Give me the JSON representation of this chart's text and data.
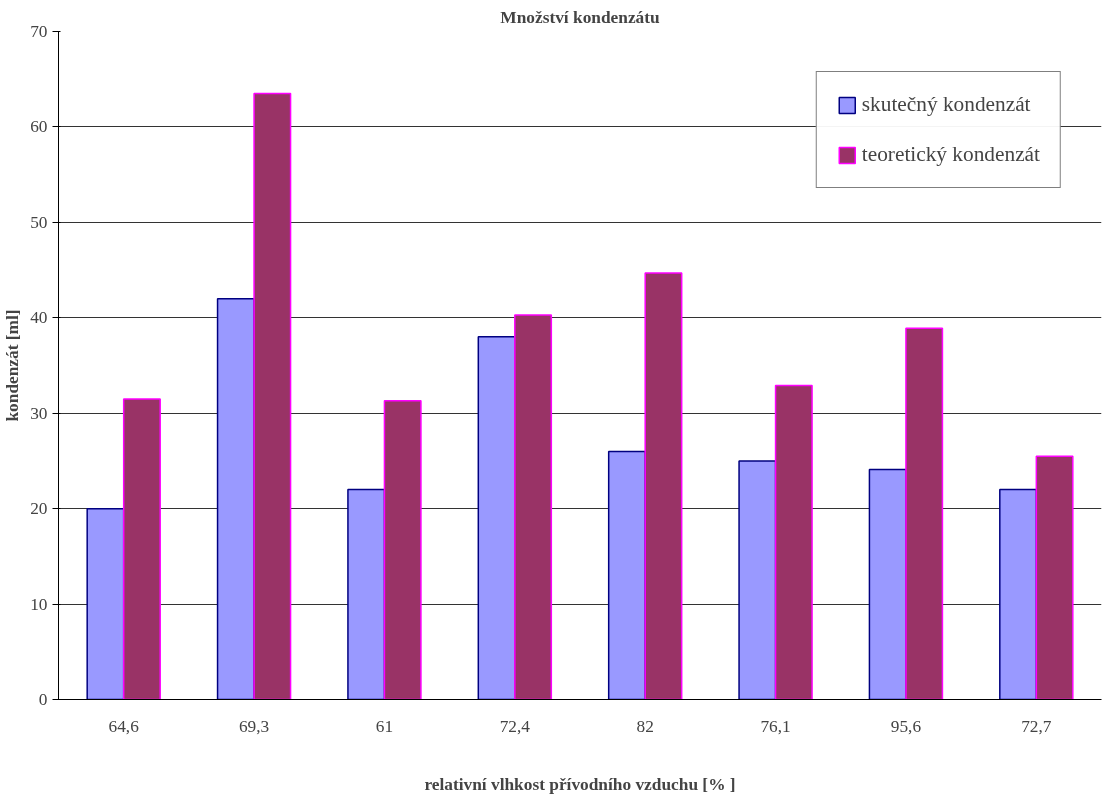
{
  "chart_data": {
    "type": "bar",
    "title": "Množství kondenzátu",
    "xlabel": "relativní vlhkost přívodního vzduchu [% ]",
    "ylabel": "kondenzát [ml]",
    "categories": [
      "64,6",
      "69,3",
      "61",
      "72,4",
      "82",
      "76,1",
      "95,6",
      "72,7"
    ],
    "series": [
      {
        "name": "skutečný kondenzát",
        "color": "#9999ff",
        "values": [
          20,
          42,
          22,
          38,
          26,
          25,
          24.1,
          22
        ]
      },
      {
        "name": "teoretický kondenzát",
        "color": "#993366",
        "values": [
          31.5,
          63.5,
          31.3,
          40.3,
          44.7,
          32.9,
          38.9,
          25.5
        ]
      }
    ],
    "ylim": [
      0,
      70
    ],
    "yticks": [
      0,
      10,
      20,
      30,
      40,
      50,
      60,
      70
    ],
    "grid": "y",
    "legend": "top right"
  }
}
